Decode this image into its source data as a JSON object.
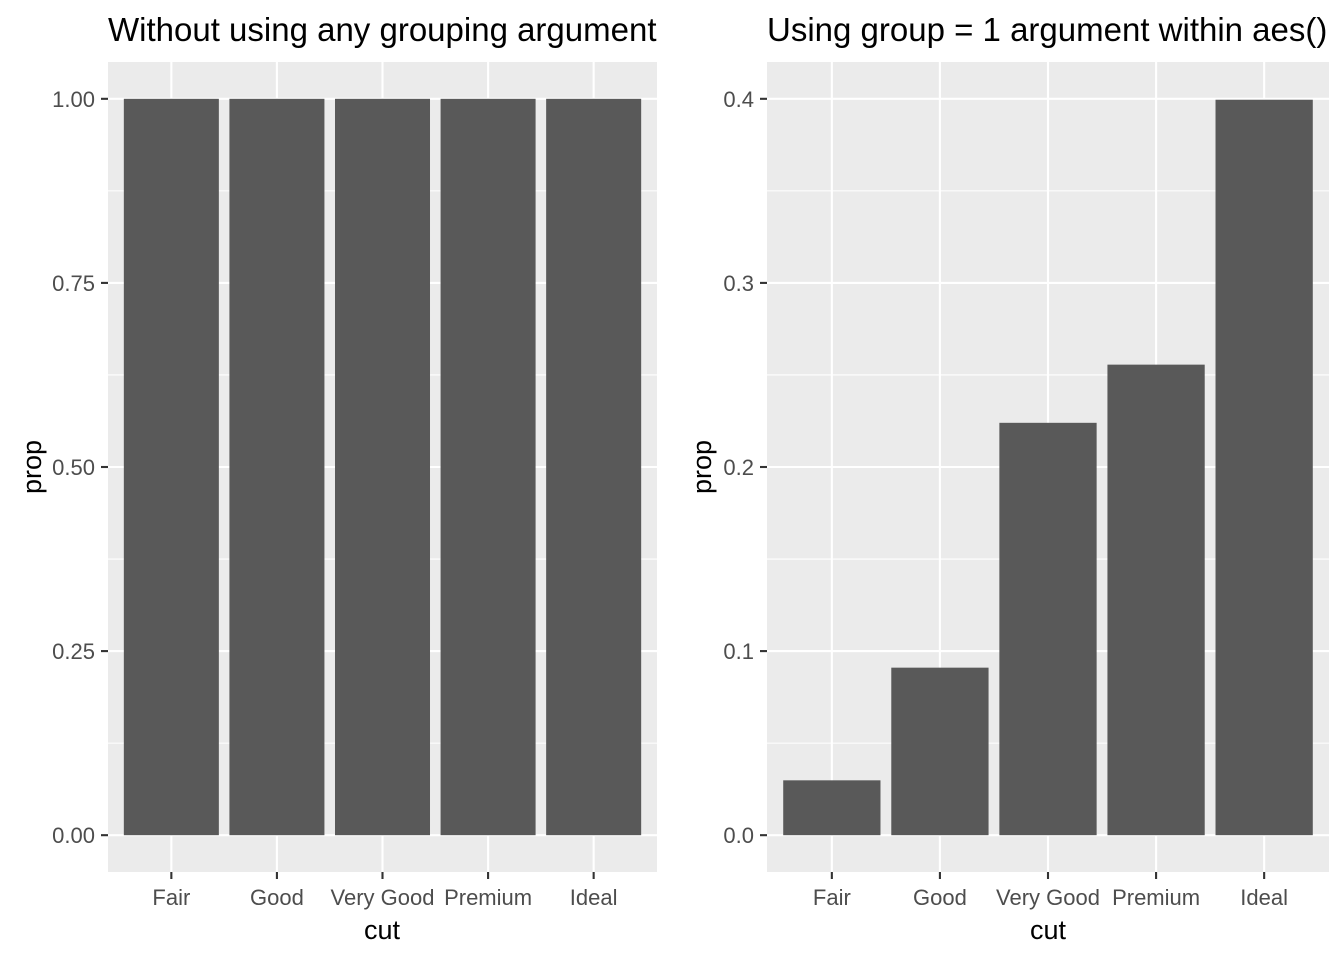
{
  "chart_data": [
    {
      "type": "bar",
      "title": "Without using any grouping argument",
      "xlabel": "cut",
      "ylabel": "prop",
      "categories": [
        "Fair",
        "Good",
        "Very Good",
        "Premium",
        "Ideal"
      ],
      "values": [
        1.0,
        1.0,
        1.0,
        1.0,
        1.0
      ],
      "ylim": [
        -0.05,
        1.05
      ],
      "y_ticks": [
        0,
        0.25,
        0.5,
        0.75,
        1.0
      ],
      "y_tick_labels": [
        "0.00",
        "0.25",
        "0.50",
        "0.75",
        "1.00"
      ],
      "bar_color": "#595959",
      "panel_background": "#ebebeb",
      "grid": true
    },
    {
      "type": "bar",
      "title": "Using group = 1 argument within aes()",
      "xlabel": "cut",
      "ylabel": "prop",
      "categories": [
        "Fair",
        "Good",
        "Very Good",
        "Premium",
        "Ideal"
      ],
      "values": [
        0.0298,
        0.091,
        0.224,
        0.2556,
        0.3995
      ],
      "ylim": [
        -0.02,
        0.42
      ],
      "y_ticks": [
        0,
        0.1,
        0.2,
        0.3,
        0.4
      ],
      "y_tick_labels": [
        "0.0",
        "0.1",
        "0.2",
        "0.3",
        "0.4"
      ],
      "bar_color": "#595959",
      "panel_background": "#ebebeb",
      "grid": true
    }
  ]
}
